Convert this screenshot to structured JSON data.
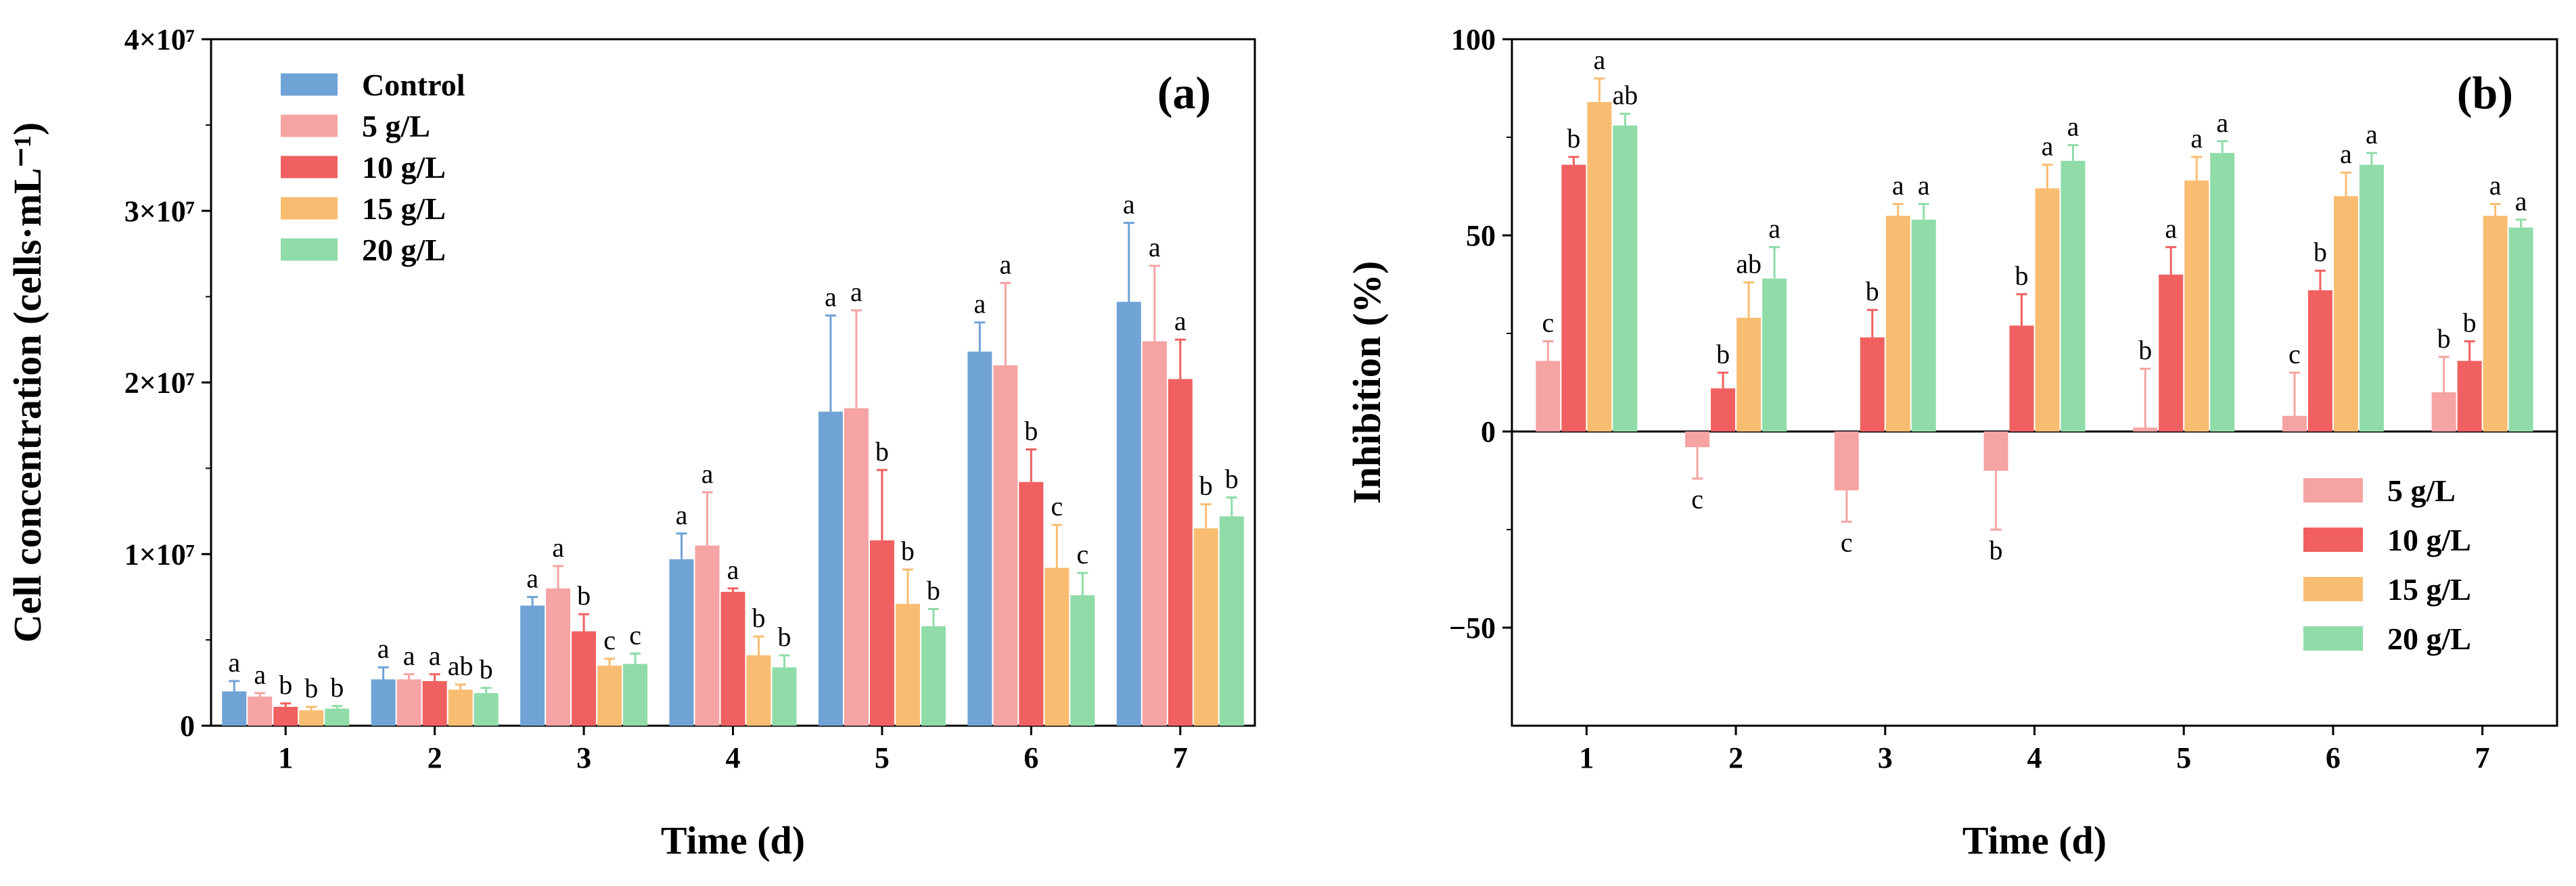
{
  "chart_data": [
    {
      "type": "bar",
      "panel_label": "(a)",
      "xlabel": "Time (d)",
      "ylabel": "Cell concentration (cells·mL⁻¹)",
      "ylim": [
        0,
        40000000
      ],
      "yticks": [
        0,
        10000000,
        20000000,
        30000000,
        40000000
      ],
      "ytick_labels": [
        "0",
        "1×10⁷",
        "2×10⁷",
        "3×10⁷",
        "4×10⁷"
      ],
      "categories": [
        "1",
        "2",
        "3",
        "4",
        "5",
        "6",
        "7"
      ],
      "legend_position": "top-left",
      "series": [
        {
          "name": "Control",
          "color": "#6fa3d6",
          "values": [
            2000000,
            2700000,
            7000000,
            9700000,
            18300000,
            21800000,
            24700000
          ],
          "errors": [
            600000,
            700000,
            500000,
            1500000,
            5600000,
            1700000,
            4600000
          ],
          "letters": [
            "a",
            "a",
            "a",
            "a",
            "a",
            "a",
            "a"
          ]
        },
        {
          "name": "5 g/L",
          "color": "#f5a3a3",
          "values": [
            1700000,
            2700000,
            8000000,
            10500000,
            18500000,
            21000000,
            22400000
          ],
          "errors": [
            200000,
            300000,
            1300000,
            3100000,
            5700000,
            4800000,
            4400000
          ],
          "letters": [
            "a",
            "a",
            "a",
            "a",
            "a",
            "a",
            "a"
          ]
        },
        {
          "name": "10 g/L",
          "color": "#f06060",
          "values": [
            1100000,
            2600000,
            5500000,
            7800000,
            10800000,
            14200000,
            20200000
          ],
          "errors": [
            200000,
            400000,
            1000000,
            200000,
            4100000,
            1900000,
            2300000
          ],
          "letters": [
            "b",
            "a",
            "b",
            "a",
            "b",
            "b",
            "a"
          ]
        },
        {
          "name": "15 g/L",
          "color": "#f9bd72",
          "values": [
            900000,
            2100000,
            3500000,
            4100000,
            7100000,
            9200000,
            11500000
          ],
          "errors": [
            200000,
            300000,
            400000,
            1100000,
            2000000,
            2500000,
            1400000
          ],
          "letters": [
            "b",
            "ab",
            "c",
            "b",
            "b",
            "c",
            "b"
          ]
        },
        {
          "name": "20 g/L",
          "color": "#8fdca8",
          "values": [
            1000000,
            1900000,
            3600000,
            3400000,
            5800000,
            7600000,
            12200000
          ],
          "errors": [
            150000,
            300000,
            600000,
            700000,
            1000000,
            1300000,
            1100000
          ],
          "letters": [
            "b",
            "b",
            "c",
            "b",
            "b",
            "c",
            "b"
          ]
        }
      ]
    },
    {
      "type": "bar",
      "panel_label": "(b)",
      "xlabel": "Time (d)",
      "ylabel": "Inhibition (%)",
      "ylim": [
        -75,
        100
      ],
      "yticks": [
        -50,
        0,
        50,
        100
      ],
      "ytick_labels": [
        "−50",
        "0",
        "50",
        "100"
      ],
      "categories": [
        "1",
        "2",
        "3",
        "4",
        "5",
        "6",
        "7"
      ],
      "legend_position": "bottom-right",
      "series": [
        {
          "name": "5 g/L",
          "color": "#f5a3a3",
          "values": [
            18,
            -4,
            -15,
            -10,
            1,
            4,
            10
          ],
          "errors": [
            5,
            8,
            8,
            15,
            15,
            11,
            9
          ],
          "letters": [
            "c",
            "c",
            "c",
            "b",
            "b",
            "c",
            "b"
          ]
        },
        {
          "name": "10 g/L",
          "color": "#f06060",
          "values": [
            68,
            11,
            24,
            27,
            40,
            36,
            18
          ],
          "errors": [
            2,
            4,
            7,
            8,
            7,
            5,
            5
          ],
          "letters": [
            "b",
            "b",
            "b",
            "b",
            "a",
            "b",
            "b"
          ]
        },
        {
          "name": "15 g/L",
          "color": "#f9bd72",
          "values": [
            84,
            29,
            55,
            62,
            64,
            60,
            55
          ],
          "errors": [
            6,
            9,
            3,
            6,
            6,
            6,
            3
          ],
          "letters": [
            "a",
            "ab",
            "a",
            "a",
            "a",
            "a",
            "a"
          ]
        },
        {
          "name": "20 g/L",
          "color": "#8fdca8",
          "values": [
            78,
            39,
            54,
            69,
            71,
            68,
            52
          ],
          "errors": [
            3,
            8,
            4,
            4,
            3,
            3,
            2
          ],
          "letters": [
            "ab",
            "a",
            "a",
            "a",
            "a",
            "a",
            "a"
          ]
        }
      ]
    }
  ]
}
